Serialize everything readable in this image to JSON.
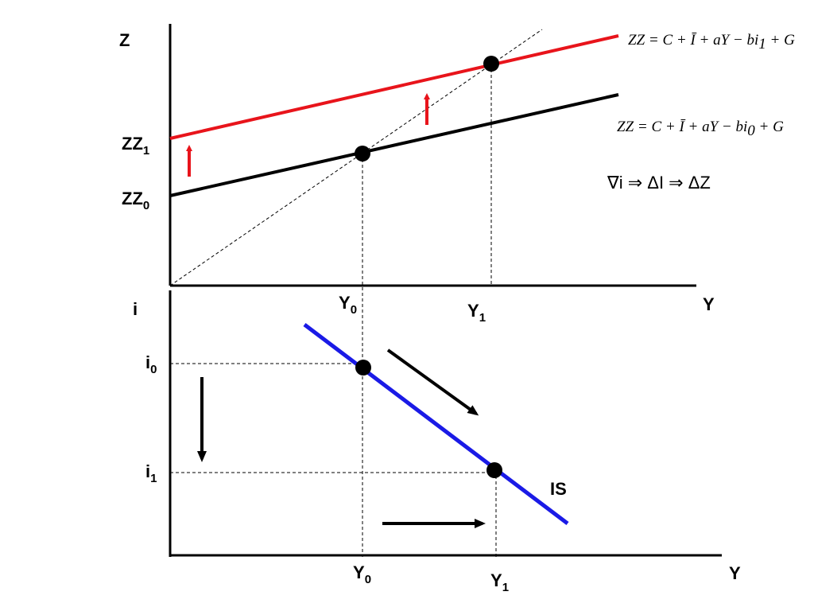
{
  "top_panel": {
    "y_axis_label": "Z",
    "x_axis_label": "Y",
    "zz1_label": "ZZ",
    "zz1_sub": "1",
    "zz0_label": "ZZ",
    "zz0_sub": "0",
    "y0_label": "Y",
    "y0_sub": "0",
    "y1_label": "Y",
    "y1_sub": "1",
    "eq_new": "ZZ = C + Ī + aY − bi",
    "eq_new_sub": "1",
    "eq_new_tail": " + G",
    "eq_old": "ZZ = C + Ī + aY − bi",
    "eq_old_sub": "0",
    "eq_old_tail": " + G",
    "relation": "∇i ⇒ ΔI ⇒ ΔZ"
  },
  "bottom_panel": {
    "y_axis_label": "i",
    "x_axis_label": "Y",
    "i0_label": "i",
    "i0_sub": "0",
    "i1_label": "i",
    "i1_sub": "1",
    "y0_label": "Y",
    "y0_sub": "0",
    "y1_label": "Y",
    "y1_sub": "1",
    "curve_label": "IS"
  },
  "colors": {
    "zz_new": "#e8141b",
    "zz_old": "#000000",
    "is_curve": "#1a1ae6",
    "arrow_up": "#e8141b",
    "arrow": "#000000"
  }
}
